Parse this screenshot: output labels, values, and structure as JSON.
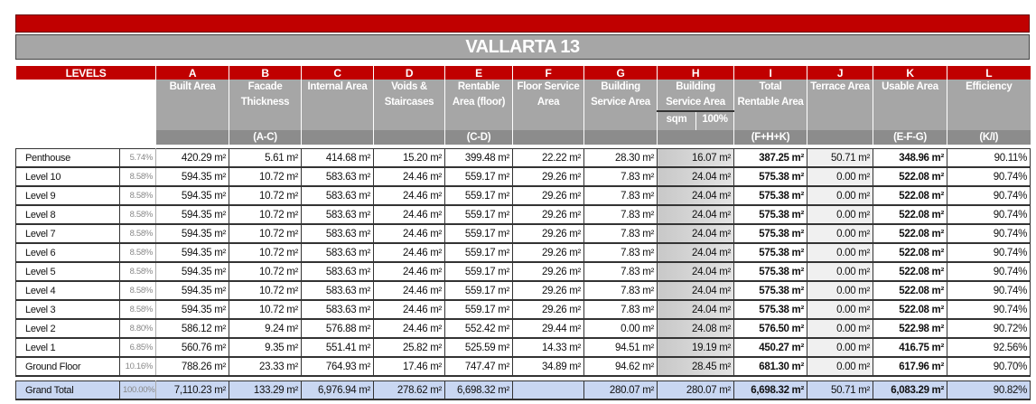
{
  "title": "VALLARTA 13",
  "header": {
    "levels": "LEVELS",
    "letters": [
      "A",
      "B",
      "C",
      "D",
      "E",
      "F",
      "G",
      "H",
      "I",
      "J",
      "K",
      "L"
    ],
    "names": [
      "Built Area",
      "Facade Thickness",
      "Internal Area",
      "Voids & Staircases",
      "Rentable Area (floor)",
      "Floor Service Area",
      "Building Service Area",
      "Building Service Area",
      "Total Rentable Area",
      "Terrace Area",
      "Usable Area",
      "Efficiency"
    ],
    "h_sub": [
      "sqm",
      "100%"
    ],
    "formulas": [
      "",
      "(A-C)",
      "",
      "",
      "(C-D)",
      "",
      "",
      "",
      "(F+H+K)",
      "",
      "(E-F-G)",
      "(K/I)"
    ]
  },
  "rows": [
    [
      "Penthouse",
      "5.74%",
      "420.29 m²",
      "5.61 m²",
      "414.68 m²",
      "15.20 m²",
      "399.48 m²",
      "22.22 m²",
      "28.30 m²",
      "16.07 m²",
      "387.25 m²",
      "50.71 m²",
      "348.96 m²",
      "90.11%"
    ],
    [
      "Level 10",
      "8.58%",
      "594.35 m²",
      "10.72 m²",
      "583.63 m²",
      "24.46 m²",
      "559.17 m²",
      "29.26 m²",
      "7.83 m²",
      "24.04 m²",
      "575.38 m²",
      "0.00 m²",
      "522.08 m²",
      "90.74%"
    ],
    [
      "Level 9",
      "8.58%",
      "594.35 m²",
      "10.72 m²",
      "583.63 m²",
      "24.46 m²",
      "559.17 m²",
      "29.26 m²",
      "7.83 m²",
      "24.04 m²",
      "575.38 m²",
      "0.00 m²",
      "522.08 m²",
      "90.74%"
    ],
    [
      "Level 8",
      "8.58%",
      "594.35 m²",
      "10.72 m²",
      "583.63 m²",
      "24.46 m²",
      "559.17 m²",
      "29.26 m²",
      "7.83 m²",
      "24.04 m²",
      "575.38 m²",
      "0.00 m²",
      "522.08 m²",
      "90.74%"
    ],
    [
      "Level 7",
      "8.58%",
      "594.35 m²",
      "10.72 m²",
      "583.63 m²",
      "24.46 m²",
      "559.17 m²",
      "29.26 m²",
      "7.83 m²",
      "24.04 m²",
      "575.38 m²",
      "0.00 m²",
      "522.08 m²",
      "90.74%"
    ],
    [
      "Level 6",
      "8.58%",
      "594.35 m²",
      "10.72 m²",
      "583.63 m²",
      "24.46 m²",
      "559.17 m²",
      "29.26 m²",
      "7.83 m²",
      "24.04 m²",
      "575.38 m²",
      "0.00 m²",
      "522.08 m²",
      "90.74%"
    ],
    [
      "Level 5",
      "8.58%",
      "594.35 m²",
      "10.72 m²",
      "583.63 m²",
      "24.46 m²",
      "559.17 m²",
      "29.26 m²",
      "7.83 m²",
      "24.04 m²",
      "575.38 m²",
      "0.00 m²",
      "522.08 m²",
      "90.74%"
    ],
    [
      "Level 4",
      "8.58%",
      "594.35 m²",
      "10.72 m²",
      "583.63 m²",
      "24.46 m²",
      "559.17 m²",
      "29.26 m²",
      "7.83 m²",
      "24.04 m²",
      "575.38 m²",
      "0.00 m²",
      "522.08 m²",
      "90.74%"
    ],
    [
      "Level 3",
      "8.58%",
      "594.35 m²",
      "10.72 m²",
      "583.63 m²",
      "24.46 m²",
      "559.17 m²",
      "29.26 m²",
      "7.83 m²",
      "24.04 m²",
      "575.38 m²",
      "0.00 m²",
      "522.08 m²",
      "90.74%"
    ],
    [
      "Level 2",
      "8.80%",
      "586.12 m²",
      "9.24 m²",
      "576.88 m²",
      "24.46 m²",
      "552.42 m²",
      "29.44 m²",
      "0.00 m²",
      "24.08 m²",
      "576.50 m²",
      "0.00 m²",
      "522.98 m²",
      "90.72%"
    ],
    [
      "Level 1",
      "6.85%",
      "560.76 m²",
      "9.35 m²",
      "551.41 m²",
      "25.82 m²",
      "525.59 m²",
      "14.33 m²",
      "94.51 m²",
      "19.19 m²",
      "450.27 m²",
      "0.00 m²",
      "416.75 m²",
      "92.56%"
    ],
    [
      "Ground Floor",
      "10.16%",
      "788.26 m²",
      "23.33 m²",
      "764.93 m²",
      "17.46 m²",
      "747.47 m²",
      "34.89 m²",
      "94.62 m²",
      "28.45 m²",
      "681.30 m²",
      "0.00 m²",
      "617.96 m²",
      "90.70%"
    ]
  ],
  "grand_total": [
    "Grand Total",
    "100.00%",
    "7,110.23 m²",
    "133.29 m²",
    "6,976.94 m²",
    "278.62 m²",
    "6,698.32 m²",
    "",
    "280.07 m²",
    "280.07 m²",
    "6,698.32 m²",
    "50.71 m²",
    "6,083.29 m²",
    "90.82%"
  ]
}
